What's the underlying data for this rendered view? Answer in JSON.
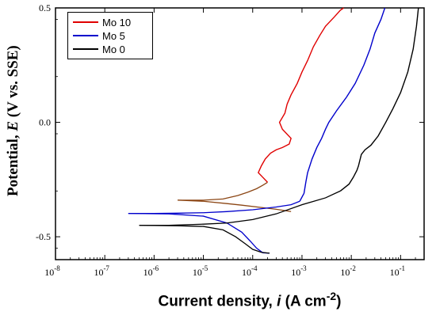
{
  "chart_data": {
    "type": "line",
    "xlabel_main": "Current density, ",
    "xlabel_italic": "i",
    "xlabel_unit": " (A cm",
    "xlabel_exp": "-2",
    "xlabel_close": ")",
    "ylabel_main": "Potential, ",
    "ylabel_italic": "E",
    "ylabel_unit": " (V vs. SSE)",
    "xscale": "log",
    "xlim": [
      1e-08,
      0.3
    ],
    "ylim": [
      -0.6,
      0.5
    ],
    "x_ticks": [
      1e-08,
      1e-07,
      1e-06,
      1e-05,
      0.0001,
      0.001,
      0.01,
      0.1
    ],
    "x_tick_labels": [
      {
        "base": "10",
        "exp": "-8"
      },
      {
        "base": "10",
        "exp": "-7"
      },
      {
        "base": "10",
        "exp": "-6"
      },
      {
        "base": "10",
        "exp": "-5"
      },
      {
        "base": "10",
        "exp": "-4"
      },
      {
        "base": "10",
        "exp": "-3"
      },
      {
        "base": "10",
        "exp": "-2"
      },
      {
        "base": "10",
        "exp": "-1"
      }
    ],
    "y_ticks": [
      -0.5,
      0.0,
      0.5
    ],
    "y_tick_labels": [
      "-0.5",
      "0.0",
      "0.5"
    ],
    "legend_position": "top-left",
    "series": [
      {
        "name": "Mo 10",
        "color": "#e00000",
        "cathodic_color": "#8b4513",
        "cathodic": [
          [
            3e-06,
            -0.34
          ],
          [
            1e-05,
            -0.34
          ],
          [
            2.5e-05,
            -0.335
          ],
          [
            5e-05,
            -0.32
          ],
          [
            8e-05,
            -0.305
          ],
          [
            0.00012,
            -0.29
          ],
          [
            0.00016,
            -0.275
          ],
          [
            0.0002,
            -0.262
          ]
        ],
        "cathodic_low": [
          [
            3e-06,
            -0.34
          ],
          [
            1e-05,
            -0.345
          ],
          [
            3e-05,
            -0.355
          ],
          [
            6e-05,
            -0.362
          ],
          [
            0.00015,
            -0.372
          ],
          [
            0.0003,
            -0.38
          ],
          [
            0.0006,
            -0.39
          ]
        ],
        "anodic": [
          [
            0.0002,
            -0.262
          ],
          [
            0.00016,
            -0.24
          ],
          [
            0.00013,
            -0.22
          ],
          [
            0.00015,
            -0.19
          ],
          [
            0.00018,
            -0.16
          ],
          [
            0.00023,
            -0.135
          ],
          [
            0.0003,
            -0.12
          ],
          [
            0.0004,
            -0.11
          ],
          [
            0.00055,
            -0.095
          ],
          [
            0.0006,
            -0.07
          ],
          [
            0.0004,
            -0.03
          ],
          [
            0.00035,
            0.0
          ],
          [
            0.00045,
            0.04
          ],
          [
            0.0005,
            0.08
          ],
          [
            0.0006,
            0.12
          ],
          [
            0.0008,
            0.17
          ],
          [
            0.001,
            0.22
          ],
          [
            0.0013,
            0.27
          ],
          [
            0.0017,
            0.33
          ],
          [
            0.0023,
            0.38
          ],
          [
            0.003,
            0.42
          ],
          [
            0.0045,
            0.46
          ],
          [
            0.006,
            0.49
          ],
          [
            0.007,
            0.5
          ]
        ]
      },
      {
        "name": "Mo 5",
        "color": "#0000cc",
        "cathodic": [
          [
            3e-07,
            -0.398
          ],
          [
            1e-06,
            -0.398
          ],
          [
            3e-06,
            -0.397
          ],
          [
            1e-05,
            -0.395
          ],
          [
            3e-05,
            -0.39
          ],
          [
            0.0001,
            -0.382
          ],
          [
            0.0003,
            -0.37
          ],
          [
            0.0006,
            -0.36
          ],
          [
            0.0009,
            -0.345
          ]
        ],
        "cathodic_low": [
          [
            3e-07,
            -0.398
          ],
          [
            2e-06,
            -0.4
          ],
          [
            1e-05,
            -0.41
          ],
          [
            3e-05,
            -0.44
          ],
          [
            6e-05,
            -0.48
          ],
          [
            9e-05,
            -0.52
          ],
          [
            0.00012,
            -0.55
          ],
          [
            0.00016,
            -0.57
          ],
          [
            0.00022,
            -0.572
          ]
        ],
        "anodic": [
          [
            0.0009,
            -0.345
          ],
          [
            0.0011,
            -0.31
          ],
          [
            0.0012,
            -0.26
          ],
          [
            0.0013,
            -0.22
          ],
          [
            0.0016,
            -0.16
          ],
          [
            0.002,
            -0.11
          ],
          [
            0.0025,
            -0.07
          ],
          [
            0.003,
            -0.03
          ],
          [
            0.0035,
            0.0
          ],
          [
            0.005,
            0.05
          ],
          [
            0.008,
            0.11
          ],
          [
            0.012,
            0.17
          ],
          [
            0.018,
            0.25
          ],
          [
            0.024,
            0.32
          ],
          [
            0.03,
            0.39
          ],
          [
            0.04,
            0.45
          ],
          [
            0.048,
            0.5
          ]
        ]
      },
      {
        "name": "Mo 0",
        "color": "#000000",
        "cathodic": [
          [
            5e-07,
            -0.45
          ],
          [
            2e-06,
            -0.45
          ],
          [
            1e-05,
            -0.445
          ],
          [
            3e-05,
            -0.44
          ],
          [
            0.0001,
            -0.425
          ],
          [
            0.0003,
            -0.4
          ],
          [
            0.001,
            -0.36
          ],
          [
            0.003,
            -0.33
          ],
          [
            0.006,
            -0.3
          ]
        ],
        "cathodic_low": [
          [
            5e-07,
            -0.45
          ],
          [
            3e-06,
            -0.452
          ],
          [
            1e-05,
            -0.455
          ],
          [
            2.5e-05,
            -0.47
          ],
          [
            4.5e-05,
            -0.5
          ],
          [
            7e-05,
            -0.53
          ],
          [
            0.0001,
            -0.555
          ],
          [
            0.00015,
            -0.568
          ],
          [
            0.00022,
            -0.572
          ]
        ],
        "anodic": [
          [
            0.006,
            -0.3
          ],
          [
            0.009,
            -0.27
          ],
          [
            0.011,
            -0.24
          ],
          [
            0.013,
            -0.21
          ],
          [
            0.014,
            -0.19
          ],
          [
            0.016,
            -0.14
          ],
          [
            0.019,
            -0.12
          ],
          [
            0.025,
            -0.1
          ],
          [
            0.035,
            -0.06
          ],
          [
            0.05,
            0.0
          ],
          [
            0.07,
            0.06
          ],
          [
            0.1,
            0.13
          ],
          [
            0.14,
            0.22
          ],
          [
            0.18,
            0.32
          ],
          [
            0.21,
            0.42
          ],
          [
            0.23,
            0.5
          ]
        ]
      }
    ]
  }
}
